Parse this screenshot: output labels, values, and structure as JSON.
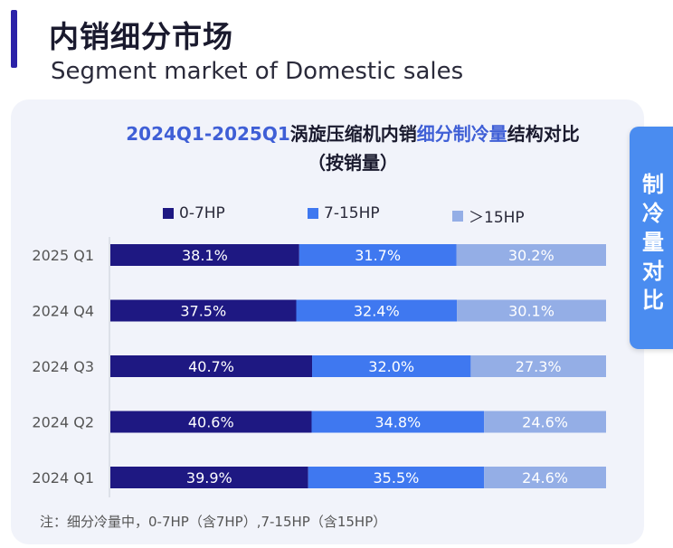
{
  "header": {
    "title_cn": "内销细分市场",
    "title_en": "Segment market of Domestic sales"
  },
  "side_tab": {
    "label": "制冷量对比"
  },
  "chart_data": {
    "type": "bar",
    "orientation": "horizontal",
    "stacked": true,
    "title_prefix": "2024Q1-2025Q1",
    "title_mid": "涡旋压缩机内销",
    "title_highlight": "细分制冷量",
    "title_suffix": "结构对比",
    "subtitle": "（按销量）",
    "categories": [
      "2025 Q1",
      "2024 Q4",
      "2024 Q3",
      "2024 Q2",
      "2024 Q1"
    ],
    "series": [
      {
        "name": "0-7HP",
        "color": "#1e1882",
        "values": [
          38.1,
          37.5,
          40.7,
          40.6,
          39.9
        ],
        "labels": [
          "38.1%",
          "37.5%",
          "40.7%",
          "40.6%",
          "39.9%"
        ]
      },
      {
        "name": "7-15HP",
        "color": "#3f78f0",
        "values": [
          31.7,
          32.4,
          32.0,
          34.8,
          35.5
        ],
        "labels": [
          "31.7%",
          "32.4%",
          "32.0%",
          "34.8%",
          "35.5%"
        ]
      },
      {
        "name": "＞15HP",
        "color": "#94aee6",
        "values": [
          30.2,
          30.1,
          27.3,
          24.6,
          24.6
        ],
        "labels": [
          "30.2%",
          "30.1%",
          "27.3%",
          "24.6%",
          "24.6%"
        ]
      }
    ],
    "legend_position": "top",
    "xlim": [
      0,
      100
    ]
  },
  "footnote": "注：细分冷量中，0-7HP（含7HP）,7-15HP（含15HP）"
}
